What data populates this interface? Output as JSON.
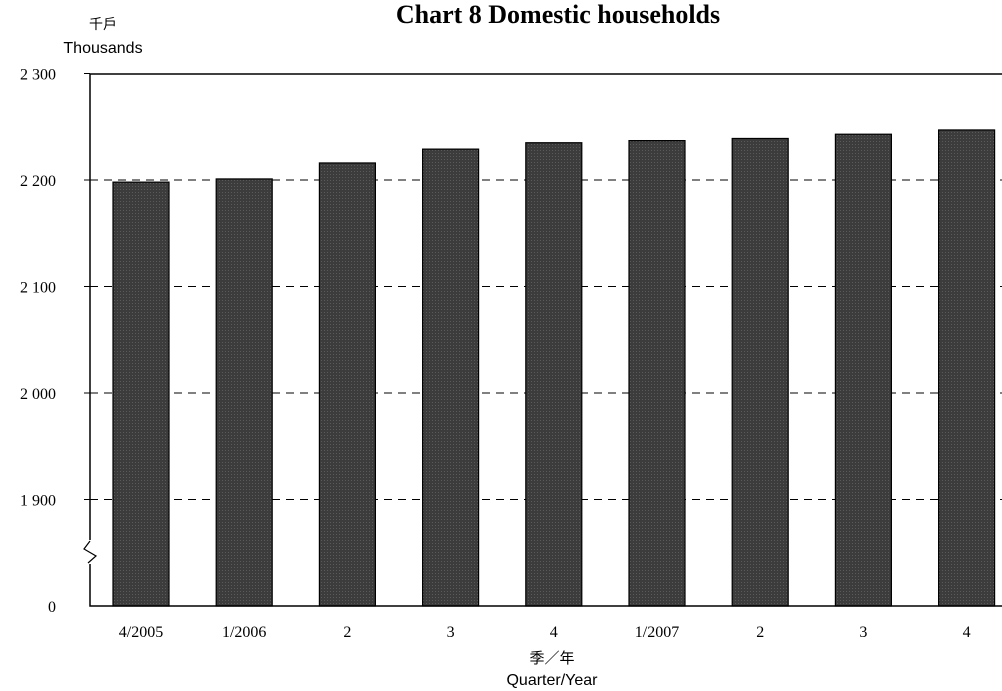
{
  "chart_data": {
    "type": "bar",
    "title": "Chart 8  Domestic households",
    "yunit_cn": "千戶",
    "yunit_en": "Thousands",
    "xlabel_cn": "季／年",
    "xlabel_en": "Quarter/Year",
    "categories": [
      "4/2005",
      "1/2006",
      "2",
      "3",
      "4",
      "1/2007",
      "2",
      "3",
      "4"
    ],
    "values": [
      2198,
      2201,
      2216,
      2229,
      2235,
      2237,
      2239,
      2243,
      2247
    ],
    "ylim": [
      1850,
      2300
    ],
    "yticks": [
      1900,
      2000,
      2100,
      2200,
      2300
    ],
    "ytick_labels": [
      "1 900",
      "2 000",
      "2 100",
      "2 200",
      "2 300"
    ],
    "zero_label": "0",
    "axis_break": true,
    "grid": "dashed horizontal",
    "bar_color": "#3a3a3a"
  }
}
